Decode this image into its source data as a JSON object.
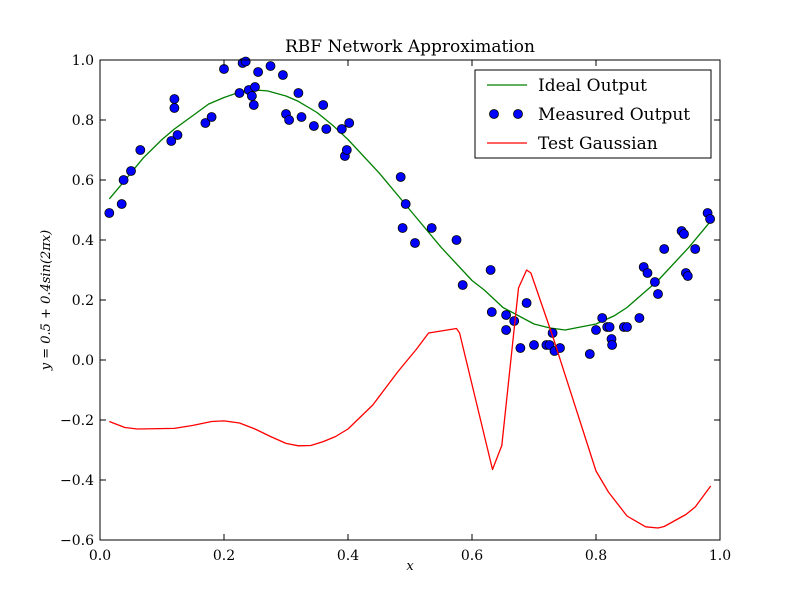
{
  "chart_data": {
    "type": "line",
    "title": "RBF Network Approximation",
    "xlabel": "x",
    "ylabel": "y = 0.5 + 0.4sin(2πx)",
    "xlim": [
      0.0,
      1.0
    ],
    "ylim": [
      -0.6,
      1.0
    ],
    "xticks": [
      "0.0",
      "0.2",
      "0.4",
      "0.6",
      "0.8",
      "1.0"
    ],
    "yticks": [
      "−0.6",
      "−0.4",
      "−0.2",
      "0.0",
      "0.2",
      "0.4",
      "0.6",
      "0.8",
      "1.0"
    ],
    "grid": false,
    "legend_position": "top-right",
    "series": [
      {
        "name": "Ideal Output",
        "style": "line",
        "color": "#008000",
        "points": [
          [
            0.015,
            0.537
          ],
          [
            0.035,
            0.586
          ],
          [
            0.05,
            0.624
          ],
          [
            0.07,
            0.674
          ],
          [
            0.1,
            0.735
          ],
          [
            0.12,
            0.77
          ],
          [
            0.15,
            0.815
          ],
          [
            0.175,
            0.853
          ],
          [
            0.2,
            0.875
          ],
          [
            0.22,
            0.889
          ],
          [
            0.25,
            0.9
          ],
          [
            0.27,
            0.897
          ],
          [
            0.3,
            0.88
          ],
          [
            0.32,
            0.862
          ],
          [
            0.35,
            0.825
          ],
          [
            0.375,
            0.783
          ],
          [
            0.4,
            0.735
          ],
          [
            0.45,
            0.624
          ],
          [
            0.49,
            0.525
          ],
          [
            0.5,
            0.5
          ],
          [
            0.55,
            0.376
          ],
          [
            0.6,
            0.265
          ],
          [
            0.62,
            0.233
          ],
          [
            0.65,
            0.175
          ],
          [
            0.7,
            0.12
          ],
          [
            0.725,
            0.107
          ],
          [
            0.75,
            0.1
          ],
          [
            0.8,
            0.12
          ],
          [
            0.83,
            0.148
          ],
          [
            0.85,
            0.175
          ],
          [
            0.9,
            0.265
          ],
          [
            0.95,
            0.376
          ],
          [
            0.985,
            0.463
          ]
        ]
      },
      {
        "name": "Measured Output",
        "style": "markers",
        "color": "#0000ff",
        "points": [
          [
            0.015,
            0.49
          ],
          [
            0.035,
            0.52
          ],
          [
            0.038,
            0.6
          ],
          [
            0.05,
            0.63
          ],
          [
            0.065,
            0.7
          ],
          [
            0.115,
            0.73
          ],
          [
            0.12,
            0.87
          ],
          [
            0.12,
            0.84
          ],
          [
            0.125,
            0.75
          ],
          [
            0.17,
            0.79
          ],
          [
            0.18,
            0.81
          ],
          [
            0.2,
            0.97
          ],
          [
            0.225,
            0.89
          ],
          [
            0.23,
            0.99
          ],
          [
            0.235,
            0.995
          ],
          [
            0.24,
            0.9
          ],
          [
            0.245,
            0.88
          ],
          [
            0.248,
            0.85
          ],
          [
            0.25,
            0.91
          ],
          [
            0.255,
            0.96
          ],
          [
            0.275,
            0.98
          ],
          [
            0.295,
            0.95
          ],
          [
            0.3,
            0.82
          ],
          [
            0.305,
            0.8
          ],
          [
            0.32,
            0.89
          ],
          [
            0.325,
            0.81
          ],
          [
            0.345,
            0.78
          ],
          [
            0.36,
            0.85
          ],
          [
            0.365,
            0.77
          ],
          [
            0.39,
            0.77
          ],
          [
            0.395,
            0.68
          ],
          [
            0.398,
            0.7
          ],
          [
            0.402,
            0.79
          ],
          [
            0.485,
            0.61
          ],
          [
            0.488,
            0.44
          ],
          [
            0.493,
            0.52
          ],
          [
            0.508,
            0.39
          ],
          [
            0.535,
            0.44
          ],
          [
            0.575,
            0.4
          ],
          [
            0.585,
            0.25
          ],
          [
            0.63,
            0.3
          ],
          [
            0.632,
            0.16
          ],
          [
            0.655,
            0.1
          ],
          [
            0.655,
            0.15
          ],
          [
            0.668,
            0.13
          ],
          [
            0.678,
            0.04
          ],
          [
            0.688,
            0.19
          ],
          [
            0.7,
            0.05
          ],
          [
            0.72,
            0.05
          ],
          [
            0.725,
            0.05
          ],
          [
            0.73,
            0.09
          ],
          [
            0.733,
            0.03
          ],
          [
            0.742,
            0.04
          ],
          [
            0.79,
            0.02
          ],
          [
            0.8,
            0.1
          ],
          [
            0.81,
            0.14
          ],
          [
            0.818,
            0.11
          ],
          [
            0.822,
            0.11
          ],
          [
            0.825,
            0.07
          ],
          [
            0.826,
            0.05
          ],
          [
            0.845,
            0.11
          ],
          [
            0.85,
            0.11
          ],
          [
            0.87,
            0.14
          ],
          [
            0.877,
            0.31
          ],
          [
            0.883,
            0.29
          ],
          [
            0.895,
            0.26
          ],
          [
            0.9,
            0.22
          ],
          [
            0.91,
            0.37
          ],
          [
            0.938,
            0.43
          ],
          [
            0.942,
            0.42
          ],
          [
            0.945,
            0.29
          ],
          [
            0.948,
            0.28
          ],
          [
            0.96,
            0.37
          ],
          [
            0.98,
            0.49
          ],
          [
            0.984,
            0.47
          ]
        ]
      },
      {
        "name": "Test Gaussian",
        "style": "line",
        "color": "#ff0000",
        "points": [
          [
            0.015,
            -0.205
          ],
          [
            0.04,
            -0.225
          ],
          [
            0.06,
            -0.23
          ],
          [
            0.12,
            -0.228
          ],
          [
            0.15,
            -0.218
          ],
          [
            0.18,
            -0.205
          ],
          [
            0.2,
            -0.203
          ],
          [
            0.225,
            -0.21
          ],
          [
            0.25,
            -0.23
          ],
          [
            0.275,
            -0.255
          ],
          [
            0.3,
            -0.278
          ],
          [
            0.32,
            -0.286
          ],
          [
            0.34,
            -0.285
          ],
          [
            0.36,
            -0.272
          ],
          [
            0.38,
            -0.255
          ],
          [
            0.4,
            -0.23
          ],
          [
            0.44,
            -0.15
          ],
          [
            0.48,
            -0.04
          ],
          [
            0.51,
            0.035
          ],
          [
            0.53,
            0.09
          ],
          [
            0.575,
            0.105
          ],
          [
            0.58,
            0.09
          ],
          [
            0.633,
            -0.365
          ],
          [
            0.648,
            -0.285
          ],
          [
            0.675,
            0.24
          ],
          [
            0.688,
            0.3
          ],
          [
            0.695,
            0.29
          ],
          [
            0.715,
            0.17
          ],
          [
            0.73,
            0.08
          ],
          [
            0.8,
            -0.37
          ],
          [
            0.82,
            -0.44
          ],
          [
            0.85,
            -0.52
          ],
          [
            0.88,
            -0.556
          ],
          [
            0.9,
            -0.56
          ],
          [
            0.91,
            -0.555
          ],
          [
            0.945,
            -0.515
          ],
          [
            0.96,
            -0.49
          ],
          [
            0.985,
            -0.42
          ]
        ]
      }
    ]
  }
}
